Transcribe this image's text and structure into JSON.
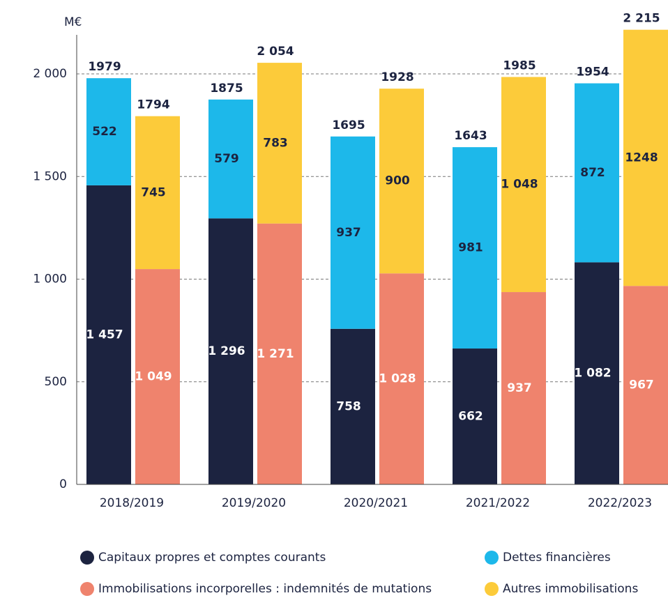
{
  "chart_data": {
    "type": "grouped_stacked_bar",
    "y_label": "M€",
    "categories": [
      "2018/2019",
      "2019/2020",
      "2020/2021",
      "2021/2022",
      "2022/2023"
    ],
    "series": [
      {
        "name": "Capitaux propres et comptes courants",
        "color": "#1c2340",
        "stack": "left",
        "values": [
          1457,
          1296,
          758,
          662,
          1082
        ],
        "value_labels": [
          "1 457",
          "1 296",
          "758",
          "662",
          "1 082"
        ]
      },
      {
        "name": "Dettes financières",
        "color": "#1db8ea",
        "stack": "left",
        "values": [
          522,
          579,
          937,
          981,
          872
        ],
        "value_labels": [
          "522",
          "579",
          "937",
          "981",
          "872"
        ]
      },
      {
        "name": "Immobilisations incorporelles : indemnités de mutations",
        "color": "#ef836d",
        "stack": "right",
        "values": [
          1049,
          1271,
          1028,
          937,
          967
        ],
        "value_labels": [
          "1 049",
          "1 271",
          "1 028",
          "937",
          "967"
        ]
      },
      {
        "name": "Autres immobilisations",
        "color": "#fccb3a",
        "stack": "right",
        "values": [
          745,
          783,
          900,
          1048,
          1248
        ],
        "value_labels": [
          "745",
          "783",
          "900",
          "1 048",
          "1248"
        ]
      }
    ],
    "total_labels": {
      "left": [
        "1979",
        "1875",
        "1695",
        "1643",
        "1954"
      ],
      "right": [
        "1794",
        "2 054",
        "1928",
        "1985",
        "2 215"
      ]
    },
    "ylim": [
      0,
      2250
    ],
    "yticks": [
      0,
      500,
      {
        "value": 1000,
        "label": "1 000"
      },
      {
        "value": 1500,
        "label": "1 500"
      },
      {
        "value": 2000,
        "label": "2 000"
      }
    ],
    "grid": true,
    "legend": "bottom"
  }
}
